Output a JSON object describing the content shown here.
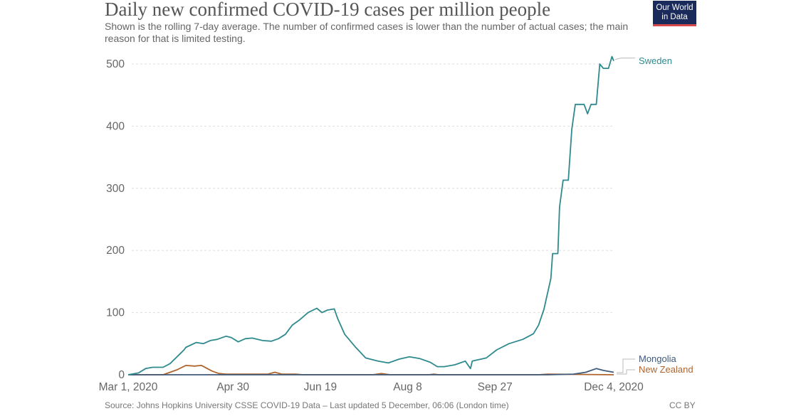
{
  "header": {
    "title": "Daily new confirmed COVID-19 cases per million people",
    "subtitle": "Shown is the rolling 7-day average. The number of confirmed cases is lower than the number of actual cases; the main reason for that is limited testing.",
    "logo_text": "Our World in Data"
  },
  "footer": {
    "source": "Source: Johns Hopkins University CSSE COVID-19 Data – Last updated 5 December, 06:06 (London time)",
    "license": "CC BY"
  },
  "colors": {
    "sweden": "#2f8a8e",
    "mongolia": "#3f5a7a",
    "new_zealand": "#b0642d",
    "grid": "#dddddd",
    "logo_bg": "#1a2a5a",
    "logo_accent": "#d6484a"
  },
  "chart_data": {
    "type": "line",
    "title": "Daily new confirmed COVID-19 cases per million people",
    "xlabel": "",
    "ylabel": "",
    "x_unit": "days since Mar 1, 2020",
    "xlim": [
      0,
      278
    ],
    "ylim": [
      0,
      500
    ],
    "grid": true,
    "x_ticks": [
      {
        "label": "Mar 1, 2020",
        "day": 0
      },
      {
        "label": "Apr 30",
        "day": 60
      },
      {
        "label": "Jun 19",
        "day": 110
      },
      {
        "label": "Aug 8",
        "day": 160
      },
      {
        "label": "Sep 27",
        "day": 210
      },
      {
        "label": "Dec 4, 2020",
        "day": 278
      }
    ],
    "y_ticks": [
      0,
      100,
      200,
      300,
      400,
      500
    ],
    "y_tick_labels": [
      "0",
      "100",
      "200",
      "300",
      "400",
      "500"
    ],
    "legend_placement": "right, at line ends",
    "series": [
      {
        "name": "Sweden",
        "x": [
          0,
          6,
          10,
          14,
          20,
          24,
          32,
          33,
          39,
          43,
          47,
          51,
          56,
          59,
          63,
          67,
          71,
          77,
          82,
          86,
          90,
          94,
          98,
          103,
          108,
          111,
          114,
          118,
          120,
          124,
          130,
          136,
          143,
          149,
          155,
          161,
          167,
          173,
          177,
          181,
          187,
          193,
          196,
          197,
          205,
          211,
          218,
          226,
          232,
          235,
          238,
          242,
          243,
          246,
          247,
          249,
          252,
          254,
          256,
          261,
          263,
          265,
          268,
          270,
          272,
          275,
          277,
          278
        ],
        "values": [
          0,
          3,
          10,
          12,
          12,
          18,
          40,
          44,
          52,
          50,
          55,
          57,
          62,
          60,
          53,
          58,
          59,
          55,
          54,
          58,
          65,
          80,
          88,
          100,
          107,
          100,
          104,
          106,
          90,
          65,
          45,
          27,
          22,
          19,
          25,
          29,
          26,
          20,
          13,
          13,
          16,
          22,
          10,
          22,
          27,
          40,
          50,
          57,
          66,
          80,
          105,
          155,
          195,
          195,
          270,
          313,
          313,
          395,
          435,
          435,
          420,
          435,
          435,
          500,
          493,
          493,
          512,
          505
        ]
      },
      {
        "name": "Mongolia",
        "x": [
          0,
          200,
          240,
          255,
          262,
          268,
          272,
          278
        ],
        "values": [
          0,
          0,
          0,
          1,
          4,
          10,
          7,
          4
        ]
      },
      {
        "name": "New Zealand",
        "x": [
          0,
          20,
          28,
          33,
          38,
          42,
          48,
          52,
          56,
          80,
          84,
          88,
          96,
          100,
          140,
          145,
          150,
          172,
          175,
          178,
          235,
          240,
          278
        ],
        "values": [
          0,
          0,
          8,
          15,
          14,
          15,
          6,
          2,
          1,
          1,
          4,
          1,
          1,
          0,
          0,
          2,
          0,
          0,
          1,
          0,
          0,
          1,
          0
        ]
      }
    ]
  }
}
